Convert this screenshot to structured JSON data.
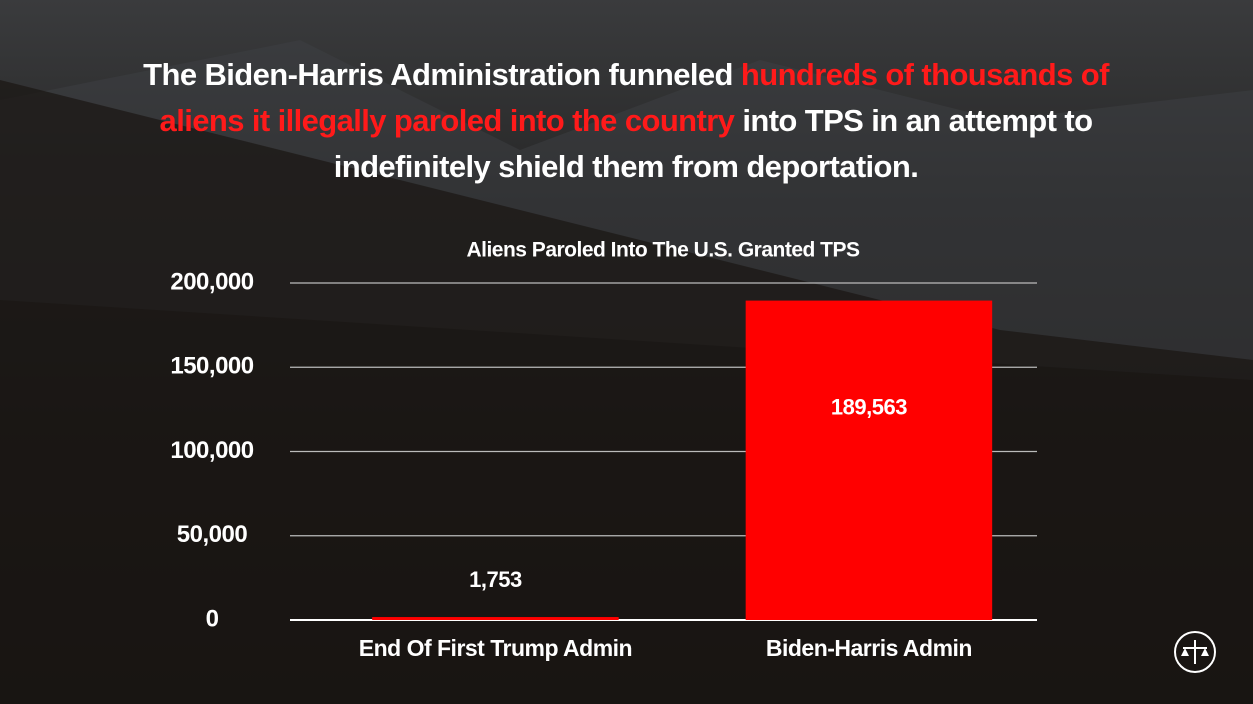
{
  "headline": [
    "The Biden-Harris Administration funneled",
    "hundreds of thousands of aliens it illegally paroled into the country",
    "into TPS in an attempt to indefinitely shield them from deportation."
  ],
  "chart_data": {
    "type": "bar",
    "title": "Aliens Paroled Into The U.S. Granted TPS",
    "categories": [
      "End Of First Trump Admin",
      "Biden-Harris Admin"
    ],
    "values": [
      1753,
      189563
    ],
    "value_labels": [
      "1,753",
      "189,563"
    ],
    "color": "#ff0000",
    "ylim": [
      0,
      200000
    ],
    "yticks": [
      0,
      {
        "value": 50000,
        "label": "50,000"
      },
      {
        "value": 100000,
        "label": "100,000"
      },
      {
        "value": 150000,
        "label": "150,000"
      },
      {
        "value": 200000,
        "label": "200,000"
      }
    ],
    "grid": true
  }
}
